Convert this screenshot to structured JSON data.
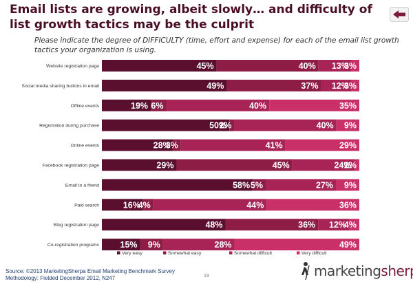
{
  "title": "Email lists are growing, albeit slowly… and difficulty of list growth tactics may be the culprit",
  "subtitle": "Please indicate the degree of DIFFICULTY (time, effort and expense) for each of the email list growth tactics your organization is using.",
  "chart_data": {
    "type": "bar",
    "orientation": "horizontal",
    "stacked": true,
    "normalized_to_percent": true,
    "categories": [
      "Website registration page",
      "Social media sharing buttons in email",
      "Offline events",
      "Registration during purchase",
      "Online events",
      "Facebook registration page",
      "Email to a friend",
      "Paid search",
      "Blog registration page",
      "Co-registration programs"
    ],
    "series": [
      {
        "name": "Very easy",
        "color": "#5b0f2e",
        "values": [
          45,
          49,
          19,
          50,
          28,
          29,
          58,
          16,
          48,
          15
        ]
      },
      {
        "name": "Somewhat easy",
        "color": "#8e1d45",
        "values": [
          40,
          37,
          6,
          2,
          3,
          45,
          5,
          4,
          36,
          9
        ]
      },
      {
        "name": "Somewhat difficult",
        "color": "#a92456",
        "values": [
          13,
          12,
          40,
          40,
          41,
          24,
          27,
          44,
          12,
          28
        ]
      },
      {
        "name": "Very difficult",
        "color": "#c93067",
        "values": [
          3,
          3,
          35,
          9,
          29,
          2,
          9,
          36,
          4,
          49
        ]
      }
    ],
    "labels": [
      [
        "45%",
        "40%",
        "13%",
        "3%"
      ],
      [
        "49%",
        "37%",
        "12%",
        "3%"
      ],
      [
        "19%",
        "6%",
        "40%",
        "35%"
      ],
      [
        "50%",
        "2%",
        "40%",
        "9%"
      ],
      [
        "28%",
        "3%",
        "41%",
        "29%"
      ],
      [
        "29%",
        "45%",
        "24%",
        "2%"
      ],
      [
        "58%",
        "5%",
        "27%",
        "9%"
      ],
      [
        "16%",
        "4%",
        "44%",
        "36%"
      ],
      [
        "48%",
        "36%",
        "12%",
        "4%"
      ],
      [
        "15%",
        "9%",
        "28%",
        "49%"
      ]
    ],
    "legend_position": "bottom",
    "grid": false
  },
  "source": {
    "line1": "Source: ©2013 MarketingSherpa Email Marketing Benchmark Survey",
    "line2": "Methodology: Fielded December 2012, N247"
  },
  "page_number": "19",
  "logo": {
    "part1": "marketing",
    "part2": "sherpa"
  }
}
